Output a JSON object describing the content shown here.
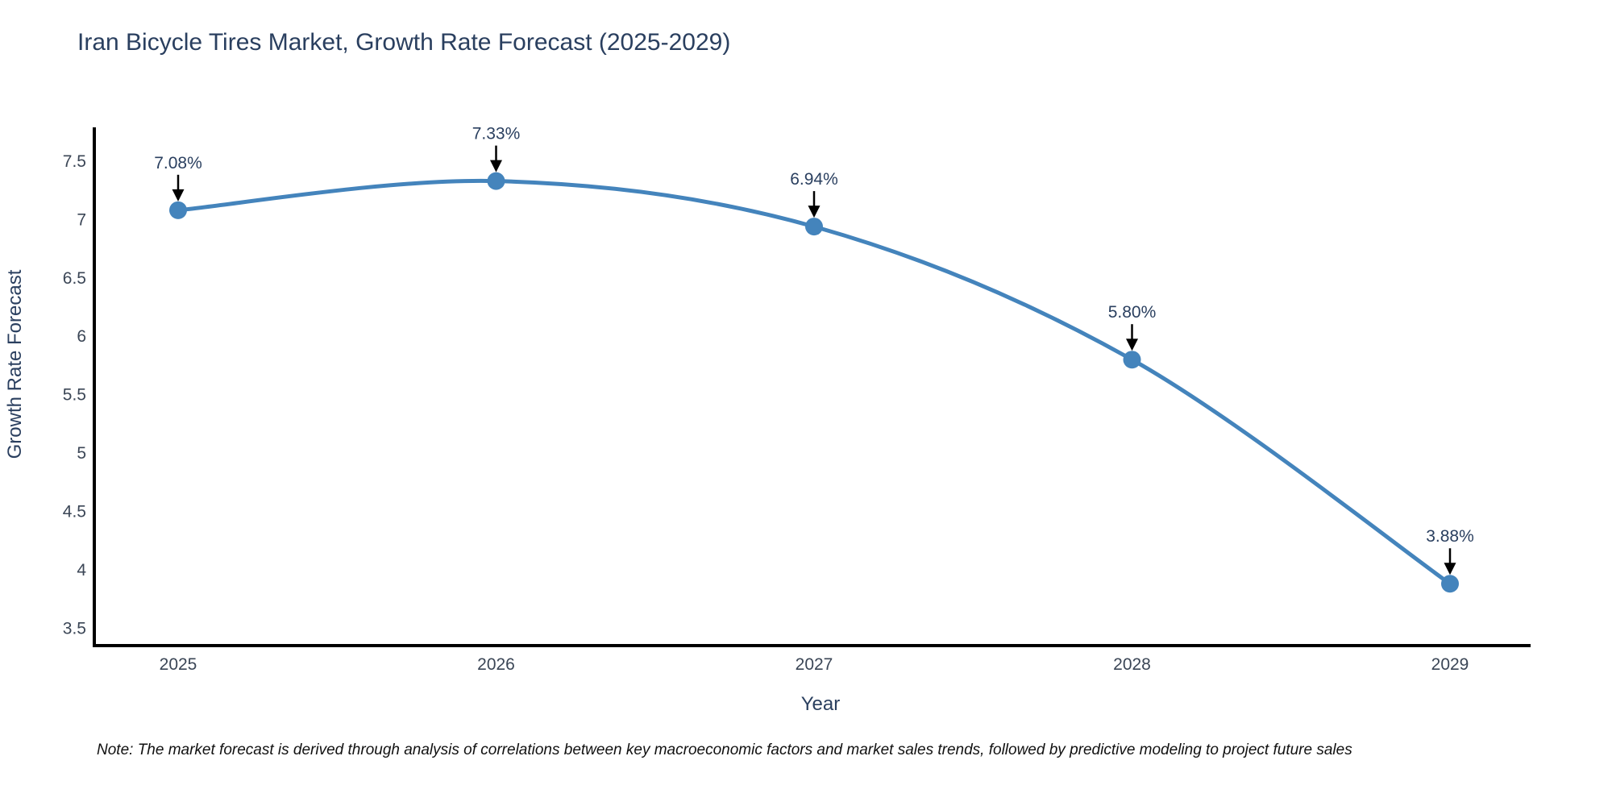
{
  "title": "Iran Bicycle Tires Market, Growth Rate Forecast (2025-2029)",
  "note": "Note: The market forecast is derived through analysis of correlations between key macroeconomic factors and market sales trends, followed by predictive modeling to project future sales",
  "chart_data": {
    "type": "line",
    "title": "Iran Bicycle Tires Market, Growth Rate Forecast (2025-2029)",
    "xlabel": "Year",
    "ylabel": "Growth Rate Forecast",
    "categories": [
      "2025",
      "2026",
      "2027",
      "2028",
      "2029"
    ],
    "series": [
      {
        "name": "Growth Rate Forecast",
        "values": [
          7.08,
          7.33,
          6.94,
          5.8,
          3.88
        ],
        "point_labels": [
          "7.08%",
          "7.33%",
          "6.94%",
          "5.80%",
          "3.88%"
        ]
      }
    ],
    "line_shape": "spline",
    "markers": true,
    "grid": false,
    "legend_position": "none",
    "ylim": [
      3.35,
      7.79
    ],
    "yticks": [
      3.5,
      4,
      4.5,
      5,
      5.5,
      6,
      6.5,
      7,
      7.5
    ],
    "ytick_labels": [
      "3.5",
      "4",
      "4.5",
      "5",
      "5.5",
      "6",
      "6.5",
      "7",
      "7.5"
    ],
    "annotations_have_arrows": true,
    "colors": {
      "line": "#4484bc",
      "marker": "#4484bc",
      "axis_line": "#000000",
      "title_text": "#2a3f5f",
      "tick_text": "#3b4656",
      "axis_title_text": "#2a3f5f",
      "annotation_text": "#2a3f5f",
      "annotation_arrow": "#000000",
      "note_text": "#111111",
      "background": "#ffffff"
    }
  }
}
